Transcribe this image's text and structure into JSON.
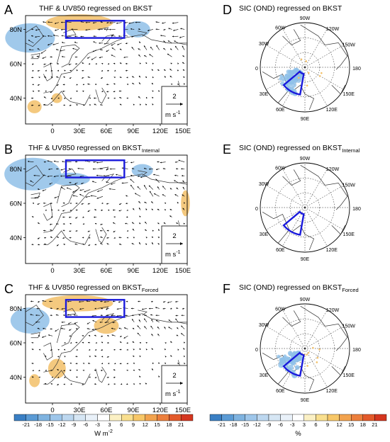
{
  "chart_data": [
    {
      "type": "vector-map",
      "panel": "A",
      "title_main": "THF & UV850 regressed on BKST",
      "title_sub": "",
      "lat_ticks": [
        "80N",
        "60N",
        "40N"
      ],
      "lon_ticks": [
        "0",
        "30E",
        "60E",
        "90E",
        "120E",
        "150E"
      ],
      "reference_vector": "2",
      "reference_unit": "m s",
      "reference_unit_exp": "-1",
      "box": {
        "lon": [
          15,
          80
        ],
        "lat": [
          75,
          85
        ]
      }
    },
    {
      "type": "vector-map",
      "panel": "B",
      "title_main": "THF & UV850 regressed on BKST",
      "title_sub": "Internal",
      "lat_ticks": [
        "80N",
        "60N",
        "40N"
      ],
      "lon_ticks": [
        "0",
        "30E",
        "60E",
        "90E",
        "120E",
        "150E"
      ],
      "reference_vector": "2",
      "reference_unit": "m s",
      "reference_unit_exp": "-1",
      "box": {
        "lon": [
          15,
          80
        ],
        "lat": [
          75,
          85
        ]
      }
    },
    {
      "type": "vector-map",
      "panel": "C",
      "title_main": "THF & UV850 regressed on BKST",
      "title_sub": "Forced",
      "lat_ticks": [
        "80N",
        "60N",
        "40N"
      ],
      "lon_ticks": [
        "0",
        "30E",
        "60E",
        "90E",
        "120E",
        "150E"
      ],
      "reference_vector": "2",
      "reference_unit": "m s",
      "reference_unit_exp": "-1",
      "box": {
        "lon": [
          15,
          80
        ],
        "lat": [
          75,
          85
        ]
      }
    },
    {
      "type": "polar-map",
      "panel": "D",
      "title_main": "SIC (OND) regressed on BKST",
      "title_sub": "",
      "lon_labels": [
        "90W",
        "60W",
        "120W",
        "30W",
        "150W",
        "0",
        "180",
        "30E",
        "150E",
        "60E",
        "120E",
        "90E"
      ]
    },
    {
      "type": "polar-map",
      "panel": "E",
      "title_main": "SIC (OND) regressed on BKST",
      "title_sub": "Internal",
      "lon_labels": [
        "90W",
        "60W",
        "120W",
        "30W",
        "150W",
        "0",
        "180",
        "30E",
        "150E",
        "60E",
        "120E",
        "90E"
      ]
    },
    {
      "type": "polar-map",
      "panel": "F",
      "title_main": "SIC (OND) regressed on BKST",
      "title_sub": "Forced",
      "lon_labels": [
        "90W",
        "60W",
        "120W",
        "30W",
        "150W",
        "0",
        "180",
        "30E",
        "150E",
        "60E",
        "120E",
        "90E"
      ]
    },
    {
      "type": "colorbar",
      "levels": [
        "-21",
        "-18",
        "-15",
        "-12",
        "-9",
        "-6",
        "-3",
        "3",
        "6",
        "9",
        "12",
        "15",
        "18",
        "21"
      ],
      "colors": [
        "#3a7fc4",
        "#5b9bd5",
        "#7fb3e0",
        "#9ec6ea",
        "#bcd7ef",
        "#d6e6f4",
        "#e9f1f9",
        "#ffffff",
        "#fbf0c4",
        "#f9df8e",
        "#f7c768",
        "#f2a34e",
        "#ec7f3c",
        "#e35a2a",
        "#d4361f"
      ],
      "unit": "W m",
      "unit_exp": "-2",
      "label_left": "left colorbar"
    },
    {
      "type": "colorbar",
      "levels": [
        "-21",
        "-18",
        "-15",
        "-12",
        "-9",
        "-6",
        "-3",
        "3",
        "6",
        "9",
        "12",
        "15",
        "18",
        "21"
      ],
      "colors": [
        "#3a7fc4",
        "#5b9bd5",
        "#7fb3e0",
        "#9ec6ea",
        "#bcd7ef",
        "#d6e6f4",
        "#e9f1f9",
        "#ffffff",
        "#fbf0c4",
        "#f9df8e",
        "#f7c768",
        "#f2a34e",
        "#ec7f3c",
        "#e35a2a",
        "#d4361f"
      ],
      "unit": "%",
      "unit_exp": ""
    }
  ],
  "letters": [
    "A",
    "B",
    "C",
    "D",
    "E",
    "F"
  ],
  "colors": {
    "box": "#1a1adc",
    "neg": "#8fc0e8",
    "pos": "#f2c069",
    "ocean": "#ffffff",
    "coast": "#333333"
  }
}
